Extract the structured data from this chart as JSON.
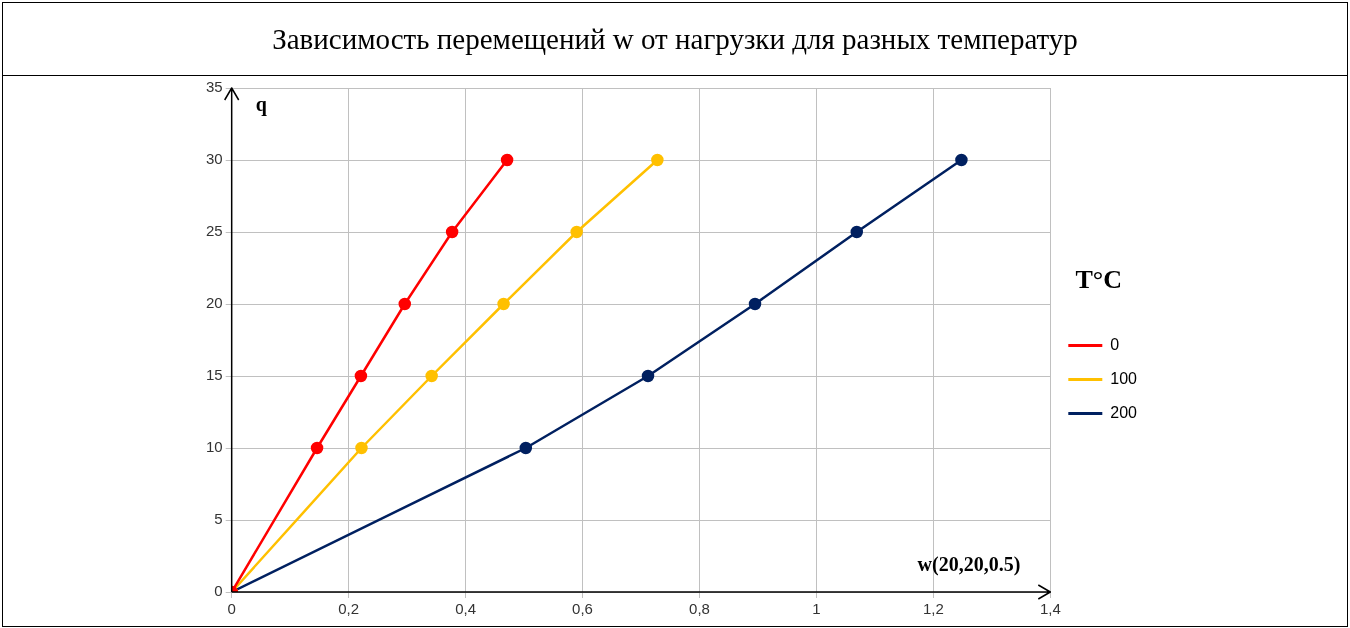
{
  "chart_data": {
    "type": "line",
    "title": "Зависимость перемещений w от нагрузки для разных температур",
    "xlabel": "w(20,20,0.5)",
    "ylabel": "q",
    "legend_title": "T°C",
    "legend": "right",
    "grid": true,
    "marker": "circle",
    "line_style": "solid",
    "xlim": [
      0,
      1.4
    ],
    "xticks": [
      0,
      {
        "value": 0.2,
        "label": "0,2"
      },
      {
        "value": 0.4,
        "label": "0,4"
      },
      {
        "value": 0.6,
        "label": "0,6"
      },
      {
        "value": 0.8,
        "label": "0,8"
      },
      1,
      {
        "value": 1.2,
        "label": "1,2"
      },
      {
        "value": 1.4,
        "label": "1,4"
      }
    ],
    "ylim": [
      0,
      35
    ],
    "yticks": [
      0,
      5,
      10,
      15,
      20,
      25,
      30,
      35
    ],
    "series": [
      {
        "name": "0",
        "color": "#ff0000",
        "x": [
          0,
          0.146,
          0.221,
          0.296,
          0.377,
          0.471
        ],
        "values": [
          0,
          10,
          15,
          20,
          25,
          30
        ]
      },
      {
        "name": "100",
        "color": "#ffc000",
        "x": [
          0,
          0.222,
          0.342,
          0.465,
          0.59,
          0.728
        ],
        "values": [
          0,
          10,
          15,
          20,
          25,
          30
        ]
      },
      {
        "name": "200",
        "color": "#002060",
        "x": [
          0,
          0.503,
          0.712,
          0.895,
          1.069,
          1.248
        ],
        "values": [
          0,
          10,
          15,
          20,
          25,
          30
        ]
      }
    ]
  }
}
